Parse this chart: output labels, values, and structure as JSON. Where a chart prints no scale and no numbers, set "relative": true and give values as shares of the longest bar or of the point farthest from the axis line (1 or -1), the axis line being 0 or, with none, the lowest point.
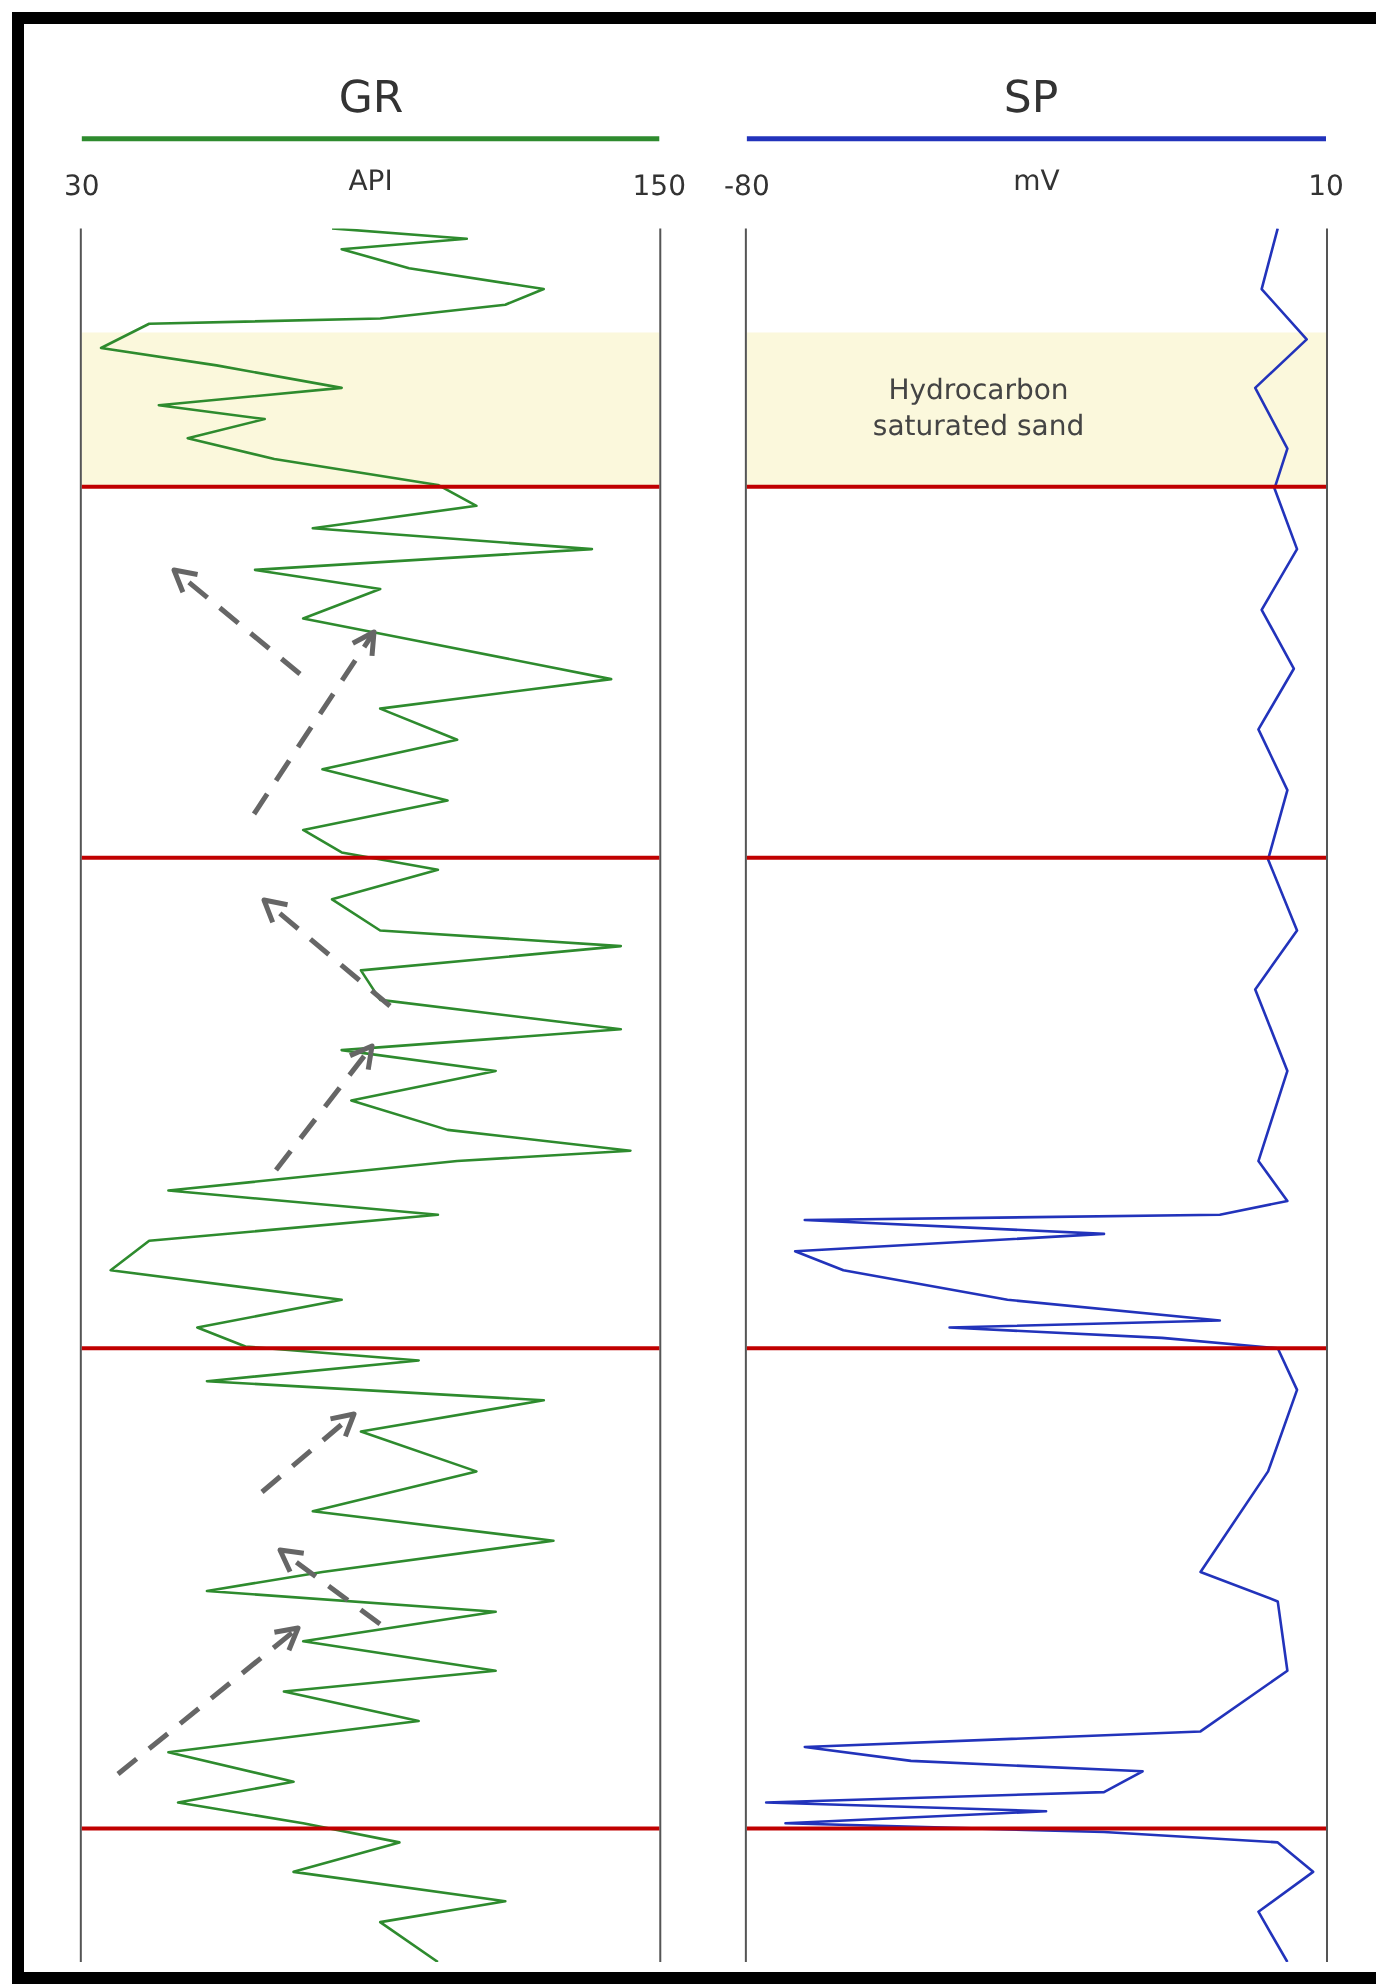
{
  "chart_data": [
    {
      "type": "line",
      "title": "GR",
      "xlabel": "API",
      "xlim": [
        30,
        150
      ],
      "xticks": [
        30,
        150
      ],
      "relative": true,
      "tick_labels": "x",
      "marker": "none",
      "series": [
        {
          "color": "#2e8b2e",
          "x": [
            82,
            110,
            84,
            98,
            126,
            118,
            92,
            44,
            34,
            58,
            84,
            46,
            68,
            52,
            70,
            104,
            112,
            78,
            136,
            66,
            92,
            76,
            98,
            140,
            92,
            108,
            80,
            106,
            76,
            84,
            104,
            82,
            92,
            142,
            88,
            92,
            142,
            84,
            116,
            86,
            106,
            144,
            108,
            48,
            104,
            44,
            36,
            84,
            54,
            64,
            100,
            56,
            126,
            88,
            112,
            78,
            128,
            80,
            56,
            116,
            76,
            116,
            72,
            100,
            48,
            74,
            50,
            76,
            96,
            74,
            118,
            92,
            104
          ],
          "values": [
            1,
            0.994,
            0.988,
            0.977,
            0.965,
            0.956,
            0.948,
            0.945,
            0.931,
            0.921,
            0.908,
            0.898,
            0.89,
            0.879,
            0.867,
            0.852,
            0.84,
            0.827,
            0.815,
            0.803,
            0.792,
            0.775,
            0.763,
            0.74,
            0.723,
            0.705,
            0.688,
            0.67,
            0.653,
            0.64,
            0.63,
            0.613,
            0.595,
            0.586,
            0.572,
            0.555,
            0.538,
            0.526,
            0.514,
            0.497,
            0.48,
            0.468,
            0.462,
            0.445,
            0.431,
            0.416,
            0.399,
            0.382,
            0.366,
            0.355,
            0.347,
            0.335,
            0.324,
            0.306,
            0.283,
            0.26,
            0.243,
            0.225,
            0.214,
            0.202,
            0.185,
            0.168,
            0.156,
            0.139,
            0.121,
            0.104,
            0.092,
            0.08,
            0.069,
            0.052,
            0.035,
            0.023,
            0
          ]
        }
      ],
      "ref_lines": [
        {
          "axis": "y",
          "value": 0.851,
          "color": "#c00000"
        },
        {
          "axis": "y",
          "value": 0.637,
          "color": "#c00000"
        },
        {
          "axis": "y",
          "value": 0.354,
          "color": "#c00000"
        },
        {
          "axis": "y",
          "value": 0.077,
          "color": "#c00000"
        }
      ],
      "bands": [
        {
          "axis": "y",
          "from": 0.851,
          "to": 0.94,
          "color": "#fbf8dc"
        }
      ]
    },
    {
      "type": "line",
      "title": "SP",
      "xlabel": "mV",
      "xlim": [
        -80,
        10
      ],
      "xticks": [
        -80,
        10
      ],
      "relative": true,
      "tick_labels": "x",
      "marker": "none",
      "series": [
        {
          "color": "#2233bb",
          "x": [
            2.5,
            0,
            7,
            -1,
            4,
            2,
            5.5,
            0,
            5,
            -0.5,
            4,
            1,
            5.5,
            -1,
            4,
            -0.5,
            4,
            -6.5,
            -71,
            -24.5,
            -72.5,
            -65,
            -39.5,
            -6.5,
            -48.5,
            -15.5,
            2.5,
            5.5,
            1,
            -9.5,
            2.5,
            4,
            -9.5,
            -71,
            -54.5,
            -18.5,
            -24.5,
            -77,
            -33.5,
            -74,
            -24.5,
            2.5,
            8,
            -0.5,
            4
          ],
          "values": [
            1,
            0.965,
            0.936,
            0.908,
            0.873,
            0.85,
            0.815,
            0.78,
            0.746,
            0.711,
            0.676,
            0.636,
            0.595,
            0.561,
            0.514,
            0.462,
            0.439,
            0.431,
            0.428,
            0.42,
            0.41,
            0.399,
            0.382,
            0.37,
            0.366,
            0.36,
            0.354,
            0.33,
            0.283,
            0.225,
            0.208,
            0.168,
            0.133,
            0.124,
            0.116,
            0.11,
            0.098,
            0.092,
            0.087,
            0.08,
            0.075,
            0.069,
            0.052,
            0.029,
            0
          ]
        }
      ],
      "ref_lines": [
        {
          "axis": "y",
          "value": 0.851,
          "color": "#c00000"
        },
        {
          "axis": "y",
          "value": 0.637,
          "color": "#c00000"
        },
        {
          "axis": "y",
          "value": 0.354,
          "color": "#c00000"
        },
        {
          "axis": "y",
          "value": 0.077,
          "color": "#c00000"
        }
      ],
      "bands": [
        {
          "axis": "y",
          "from": 0.851,
          "to": 0.94,
          "color": "#fbf8dc",
          "label": "Hydrocarbon saturated sand"
        }
      ]
    }
  ]
}
